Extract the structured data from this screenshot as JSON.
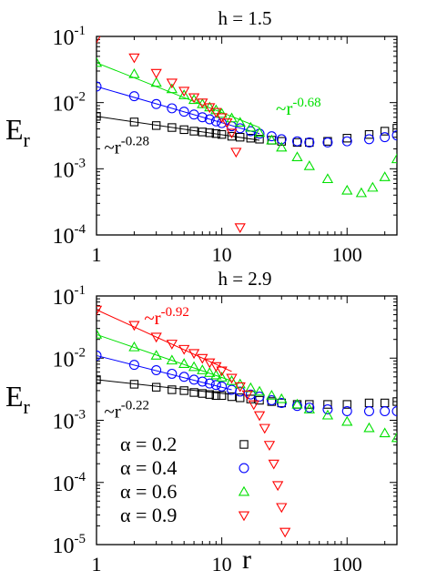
{
  "chart_data": [
    {
      "type": "scatter",
      "title": "h = 1.5",
      "xlabel": "",
      "ylabel": {
        "base": "E",
        "sub": "r"
      },
      "xscale": "log",
      "yscale": "log",
      "xlim": [
        1,
        250
      ],
      "ylim": [
        0.0001,
        0.1
      ],
      "x_ticks": [
        {
          "value": 1,
          "label": "1"
        },
        {
          "value": 10,
          "label": "10"
        },
        {
          "value": 100,
          "label": "100"
        }
      ],
      "y_ticks": [
        {
          "value": 0.1,
          "base": "10",
          "exp": "-1"
        },
        {
          "value": 0.01,
          "base": "10",
          "exp": "-2"
        },
        {
          "value": 0.001,
          "base": "10",
          "exp": "-3"
        },
        {
          "value": 0.0001,
          "base": "10",
          "exp": "-4"
        }
      ],
      "grid": false,
      "series": [
        {
          "alpha": 0.2,
          "marker": "square",
          "color": "#000000",
          "x": [
            1,
            2,
            3,
            4,
            5,
            6,
            7,
            8,
            9,
            10,
            12,
            14,
            17,
            20,
            25,
            30,
            40,
            50,
            70,
            100,
            150,
            200,
            250
          ],
          "y": [
            0.0062,
            0.0051,
            0.0045,
            0.0042,
            0.0039,
            0.0037,
            0.0036,
            0.0035,
            0.0034,
            0.0033,
            0.0031,
            0.003,
            0.0029,
            0.0028,
            0.0027,
            0.0026,
            0.0025,
            0.0025,
            0.0026,
            0.0029,
            0.0033,
            0.0037,
            0.0041
          ]
        },
        {
          "alpha": 0.4,
          "marker": "circle",
          "color": "#0000ff",
          "x": [
            1,
            2,
            3,
            4,
            5,
            6,
            7,
            8,
            9,
            10,
            12,
            14,
            17,
            20,
            25,
            30,
            40,
            50,
            70,
            100,
            150,
            200,
            250
          ],
          "y": [
            0.0175,
            0.0125,
            0.0095,
            0.0082,
            0.0073,
            0.0066,
            0.006,
            0.0056,
            0.0052,
            0.0049,
            0.0044,
            0.0041,
            0.0037,
            0.0034,
            0.0031,
            0.0028,
            0.0026,
            0.0025,
            0.0025,
            0.0026,
            0.0028,
            0.003,
            0.0032
          ]
        },
        {
          "alpha": 0.6,
          "marker": "triangle-up",
          "color": "#00e000",
          "x": [
            1,
            2,
            3,
            4,
            5,
            6,
            7,
            8,
            9,
            10,
            12,
            14,
            17,
            20,
            25,
            30,
            40,
            50,
            70,
            100,
            130,
            160,
            200,
            250
          ],
          "y": [
            0.04,
            0.027,
            0.02,
            0.016,
            0.013,
            0.011,
            0.0095,
            0.0085,
            0.0077,
            0.0068,
            0.0058,
            0.005,
            0.0042,
            0.0035,
            0.0027,
            0.0021,
            0.0015,
            0.0011,
            0.0007,
            0.00047,
            0.00043,
            0.00052,
            0.00075,
            0.0014
          ]
        },
        {
          "alpha": 0.9,
          "marker": "triangle-down",
          "color": "#ff0000",
          "x": [
            1,
            2,
            3,
            4,
            5,
            6,
            7,
            8,
            9,
            10,
            11,
            12,
            13,
            14
          ],
          "y": [
            0.095,
            0.048,
            0.028,
            0.02,
            0.015,
            0.012,
            0.01,
            0.0085,
            0.0072,
            0.006,
            0.005,
            0.0035,
            0.0018,
            0.00013
          ]
        }
      ],
      "fit_lines": [
        {
          "color": "#000000",
          "x": [
            1,
            20
          ],
          "y": [
            0.0062,
            0.0027
          ]
        },
        {
          "color": "#0000ff",
          "x": [
            1,
            20
          ],
          "y": [
            0.0175,
            0.0034
          ]
        },
        {
          "color": "#00e000",
          "x": [
            1,
            20
          ],
          "y": [
            0.04,
            0.0042
          ]
        }
      ],
      "annotations": [
        {
          "text": "~r",
          "exp": "-0.68",
          "color": "#00e000",
          "x": 27,
          "y": 0.0066
        },
        {
          "text": "~r",
          "exp": "-0.28",
          "color": "#000000",
          "x": 1.15,
          "y": 0.0017
        }
      ]
    },
    {
      "type": "scatter",
      "title": "h = 2.9",
      "xlabel": "r",
      "ylabel": {
        "base": "E",
        "sub": "r"
      },
      "xscale": "log",
      "yscale": "log",
      "xlim": [
        1,
        250
      ],
      "ylim": [
        1e-05,
        0.1
      ],
      "x_ticks": [
        {
          "value": 1,
          "label": "1"
        },
        {
          "value": 10,
          "label": "10"
        },
        {
          "value": 100,
          "label": "100"
        }
      ],
      "y_ticks": [
        {
          "value": 0.1,
          "base": "10",
          "exp": "-1"
        },
        {
          "value": 0.01,
          "base": "10",
          "exp": "-2"
        },
        {
          "value": 0.001,
          "base": "10",
          "exp": "-3"
        },
        {
          "value": 0.0001,
          "base": "10",
          "exp": "-4"
        },
        {
          "value": 1e-05,
          "base": "10",
          "exp": "-5"
        }
      ],
      "grid": false,
      "legend_position": "bottom-left",
      "series": [
        {
          "alpha": 0.2,
          "label": "α = 0.2",
          "marker": "square",
          "color": "#000000",
          "x": [
            1,
            2,
            3,
            4,
            5,
            6,
            7,
            8,
            9,
            10,
            12,
            14,
            17,
            20,
            25,
            30,
            40,
            50,
            70,
            100,
            150,
            200,
            250
          ],
          "y": [
            0.0045,
            0.0038,
            0.0034,
            0.0031,
            0.003,
            0.0028,
            0.0027,
            0.0026,
            0.0025,
            0.0025,
            0.0024,
            0.0023,
            0.0022,
            0.0021,
            0.002,
            0.0019,
            0.0018,
            0.0018,
            0.0018,
            0.0018,
            0.0019,
            0.0019,
            0.002
          ]
        },
        {
          "alpha": 0.4,
          "label": "α = 0.4",
          "marker": "circle",
          "color": "#0000ff",
          "x": [
            1,
            2,
            3,
            4,
            5,
            6,
            7,
            8,
            9,
            10,
            12,
            14,
            17,
            20,
            25,
            30,
            40,
            50,
            70,
            100,
            150,
            200,
            250
          ],
          "y": [
            0.011,
            0.0078,
            0.0064,
            0.0056,
            0.005,
            0.0045,
            0.0042,
            0.0039,
            0.0037,
            0.0035,
            0.0031,
            0.0029,
            0.0026,
            0.0024,
            0.0021,
            0.0019,
            0.0017,
            0.0016,
            0.0015,
            0.0014,
            0.0014,
            0.0014,
            0.0014
          ]
        },
        {
          "alpha": 0.6,
          "label": "α = 0.6",
          "marker": "triangle-up",
          "color": "#00e000",
          "x": [
            1,
            2,
            3,
            4,
            5,
            6,
            7,
            8,
            9,
            10,
            12,
            14,
            17,
            20,
            25,
            30,
            40,
            50,
            70,
            100,
            150,
            200,
            250
          ],
          "y": [
            0.024,
            0.015,
            0.011,
            0.0092,
            0.0081,
            0.0072,
            0.0064,
            0.0058,
            0.0053,
            0.0049,
            0.0043,
            0.0038,
            0.0033,
            0.0029,
            0.0025,
            0.0022,
            0.0018,
            0.0015,
            0.0012,
            0.00095,
            0.00075,
            0.00062,
            0.00052
          ]
        },
        {
          "alpha": 0.9,
          "label": "α = 0.9",
          "marker": "triangle-down",
          "color": "#ff0000",
          "x": [
            1,
            2,
            3,
            4,
            5,
            6,
            7,
            8,
            9,
            10,
            12,
            14,
            16,
            18,
            20,
            22,
            24,
            26,
            28,
            30,
            32
          ],
          "y": [
            0.06,
            0.034,
            0.022,
            0.017,
            0.014,
            0.012,
            0.01,
            0.0085,
            0.0074,
            0.0063,
            0.0048,
            0.0035,
            0.0026,
            0.0018,
            0.0012,
            0.00075,
            0.0004,
            0.0002,
            9e-05,
            4e-05,
            1.6e-05
          ]
        }
      ],
      "fit_lines": [
        {
          "color": "#ff0000",
          "x": [
            1,
            12
          ],
          "y": [
            0.06,
            0.0061
          ]
        },
        {
          "color": "#00e000",
          "x": [
            1,
            12
          ],
          "y": [
            0.024,
            0.0043
          ]
        },
        {
          "color": "#0000ff",
          "x": [
            1,
            12
          ],
          "y": [
            0.011,
            0.0031
          ]
        },
        {
          "color": "#000000",
          "x": [
            1,
            12
          ],
          "y": [
            0.0045,
            0.0026
          ]
        }
      ],
      "annotations": [
        {
          "text": "~r",
          "exp": "-0.92",
          "color": "#ff0000",
          "x": 2.4,
          "y": 0.035
        },
        {
          "text": "~r",
          "exp": "-0.22",
          "color": "#000000",
          "x": 1.15,
          "y": 0.0011
        }
      ]
    }
  ]
}
